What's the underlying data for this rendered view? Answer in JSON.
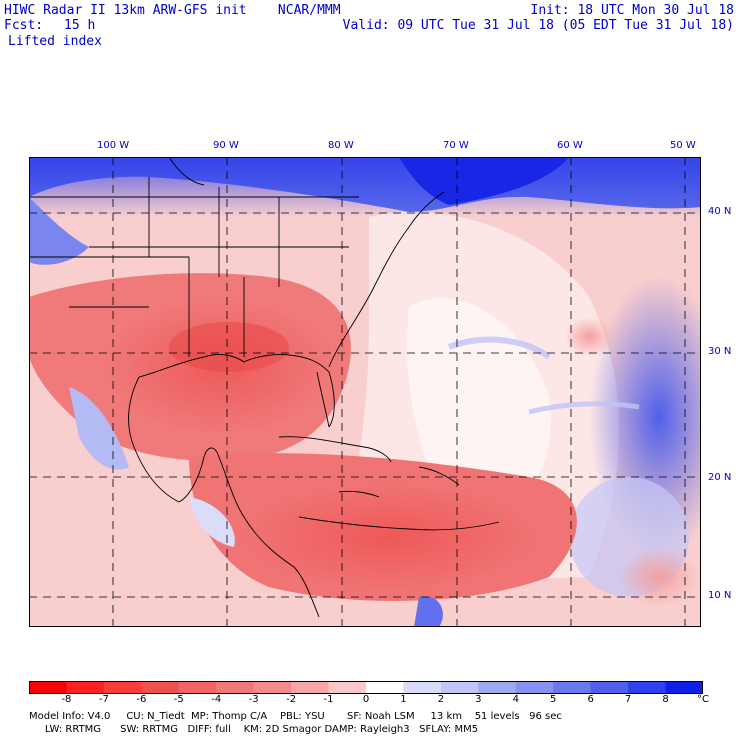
{
  "header": {
    "title": "HIWC Radar II 13km ARW-GFS init    NCAR/MMM",
    "init": "Init: 18 UTC Mon 30 Jul 18",
    "fcst_label": "Fcst:",
    "fcst_value": "15 h",
    "valid": "Valid: 09 UTC Tue 31 Jul 18 (05 EDT Tue 31 Jul 18)",
    "field": "Lifted index"
  },
  "map": {
    "lon_labels": [
      "100 W",
      "90 W",
      "80 W",
      "70 W",
      "60 W",
      "50 W"
    ],
    "lat_labels": [
      "40 N",
      "30 N",
      "20 N",
      "10 N"
    ]
  },
  "colorbar": {
    "ticks": [
      "-8",
      "-7",
      "-6",
      "-5",
      "-4",
      "-3",
      "-2",
      "-1",
      "0",
      "1",
      "2",
      "3",
      "4",
      "5",
      "6",
      "7",
      "8"
    ],
    "unit": "°C",
    "colors": [
      "#ff0000",
      "#ff2020",
      "#ff3c3c",
      "#f05050",
      "#f06464",
      "#f07878",
      "#f28c8c",
      "#f6a6a6",
      "#fac8c8",
      "#ffffff",
      "#dadcfa",
      "#c0c4f6",
      "#a0a8f2",
      "#8890f0",
      "#6c78ee",
      "#5060ec",
      "#3040ea",
      "#1020e8"
    ]
  },
  "footer": {
    "line1": "Model Info: V4.0     CU: N_Tiedt  MP: Thomp C/A    PBL: YSU       SF: Noah LSM     13 km    51 levels   96 sec",
    "line2": "     LW: RRTMG      SW: RRTMG   DIFF: full    KM: 2D Smagor DAMP: Rayleigh3   SFLAY: MM5"
  }
}
